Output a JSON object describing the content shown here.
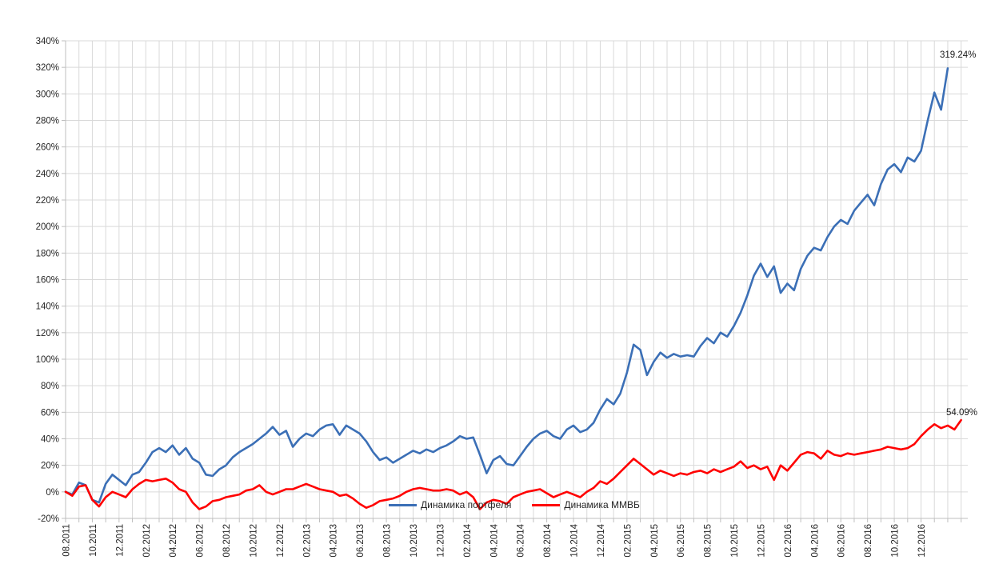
{
  "chart_data": {
    "type": "line",
    "title": "",
    "xlabel": "",
    "ylabel": "",
    "ylim": [
      -20,
      340
    ],
    "y_step": 20,
    "y_tick_suffix": "%",
    "x_total_months": 67.5,
    "x_label_every_months": 2,
    "x_tick_labels": [
      "08.2011",
      "10.2011",
      "12.2011",
      "02.2012",
      "04.2012",
      "06.2012",
      "08.2012",
      "10.2012",
      "12.2012",
      "02.2013",
      "04.2013",
      "06.2013",
      "08.2013",
      "10.2013",
      "12.2013",
      "02.2014",
      "04.2014",
      "06.2014",
      "08.2014",
      "10.2014",
      "12.2014",
      "02.2015",
      "04.2015",
      "06.2015",
      "08.2015",
      "10.2015",
      "12.2015",
      "02.2016",
      "04.2016",
      "06.2016",
      "08.2016",
      "10.2016",
      "12.2016"
    ],
    "grid": true,
    "legend_position": "bottom-center-inside",
    "series": [
      {
        "name": "Динамика портфеля",
        "color": "#3B6FB6",
        "end_label": "319.24%",
        "month_step": 0.5,
        "values": [
          0,
          -2,
          7,
          5,
          -6,
          -8,
          6,
          13,
          9,
          5,
          13,
          15,
          22,
          30,
          33,
          30,
          35,
          28,
          33,
          25,
          22,
          13,
          12,
          17,
          20,
          26,
          30,
          33,
          36,
          40,
          44,
          49,
          43,
          46,
          34,
          40,
          44,
          42,
          47,
          50,
          51,
          43,
          50,
          47,
          44,
          38,
          30,
          24,
          26,
          22,
          25,
          28,
          31,
          29,
          32,
          30,
          33,
          35,
          38,
          42,
          40,
          41,
          28,
          14,
          24,
          27,
          21,
          20,
          27,
          34,
          40,
          44,
          46,
          42,
          40,
          47,
          50,
          45,
          47,
          52,
          62,
          70,
          66,
          74,
          90,
          111,
          107,
          88,
          98,
          105,
          101,
          104,
          102,
          103,
          102,
          110,
          116,
          112,
          120,
          117,
          125,
          135,
          148,
          163,
          172,
          162,
          170,
          150,
          157,
          152,
          168,
          178,
          184,
          182,
          192,
          200,
          205,
          202,
          212,
          218,
          224,
          216,
          232,
          243,
          247,
          241,
          252,
          249,
          257,
          280,
          301,
          288,
          319.24
        ]
      },
      {
        "name": "Динамика ММВБ",
        "color": "#FF0000",
        "end_label": "54.09%",
        "month_step": 0.5,
        "values": [
          0,
          -3,
          4,
          5,
          -6,
          -11,
          -4,
          0,
          -2,
          -4,
          2,
          6,
          9,
          8,
          9,
          10,
          7,
          2,
          0,
          -8,
          -13,
          -11,
          -7,
          -6,
          -4,
          -3,
          -2,
          1,
          2,
          5,
          0,
          -2,
          0,
          2,
          2,
          4,
          6,
          4,
          2,
          1,
          0,
          -3,
          -2,
          -5,
          -9,
          -12,
          -10,
          -7,
          -6,
          -5,
          -3,
          0,
          2,
          3,
          2,
          1,
          1,
          2,
          1,
          -2,
          0,
          -4,
          -13,
          -8,
          -6,
          -7,
          -9,
          -4,
          -2,
          0,
          1,
          2,
          -1,
          -4,
          -2,
          0,
          -2,
          -4,
          0,
          3,
          8,
          6,
          10,
          15,
          20,
          25,
          21,
          17,
          13,
          16,
          14,
          12,
          14,
          13,
          15,
          16,
          14,
          17,
          15,
          17,
          19,
          23,
          18,
          20,
          17,
          19,
          9,
          20,
          16,
          22,
          28,
          30,
          29,
          25,
          31,
          28,
          27,
          29,
          28,
          29,
          30,
          31,
          32,
          34,
          33,
          32,
          33,
          36,
          42,
          47,
          51,
          48,
          50,
          47,
          54.09
        ]
      }
    ]
  },
  "colors": {
    "background": "#FFFFFF",
    "gridline": "#D9D9D9",
    "axis": "#BFBFBF",
    "tick_text": "#262626"
  }
}
